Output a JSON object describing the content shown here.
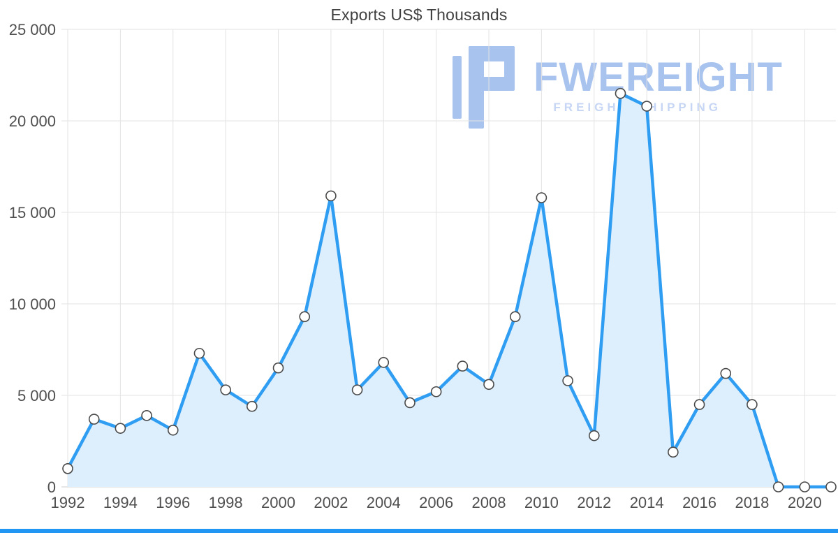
{
  "page": {
    "background": "#ffffff",
    "bottom_bar_color": "#2196f3"
  },
  "chart_data": {
    "type": "line",
    "title": "Exports US$ Thousands",
    "x": [
      1992,
      1993,
      1994,
      1995,
      1996,
      1997,
      1998,
      1999,
      2000,
      2001,
      2002,
      2003,
      2004,
      2005,
      2006,
      2007,
      2008,
      2009,
      2010,
      2011,
      2012,
      2013,
      2014,
      2015,
      2016,
      2017,
      2018,
      2019,
      2020,
      2021
    ],
    "values": [
      1000,
      3700,
      3200,
      3900,
      3100,
      7300,
      5300,
      4400,
      6500,
      9300,
      15900,
      5300,
      6800,
      4600,
      5200,
      6600,
      5600,
      9300,
      15800,
      5800,
      2800,
      21500,
      20800,
      1900,
      4500,
      6200,
      4500,
      0,
      0,
      0
    ],
    "xlabel": "",
    "ylabel": "",
    "ylim": [
      0,
      25000
    ],
    "yticks": [
      0,
      5000,
      10000,
      15000,
      20000,
      25000
    ],
    "ytick_labels": [
      "0",
      "5 000",
      "10 000",
      "15 000",
      "20 000",
      "25 000"
    ],
    "xtick_years": [
      1992,
      1994,
      1996,
      1998,
      2000,
      2002,
      2004,
      2006,
      2008,
      2010,
      2012,
      2014,
      2016,
      2018,
      2020
    ],
    "grid": true,
    "legend_position": "none",
    "line_color": "#2e9df2",
    "area_color": "#ddeffd",
    "marker_fill": "#ffffff",
    "marker_stroke": "#4a4a4a",
    "gridline_color": "#e3e3e3",
    "baseline_color": "#cdcdcd",
    "axis_label_color": "#4f4f4f"
  },
  "watermark": {
    "brand": "FWEREIGHT",
    "tagline": "FREIGHT SHIPPING",
    "color": "#a9c3ef"
  }
}
